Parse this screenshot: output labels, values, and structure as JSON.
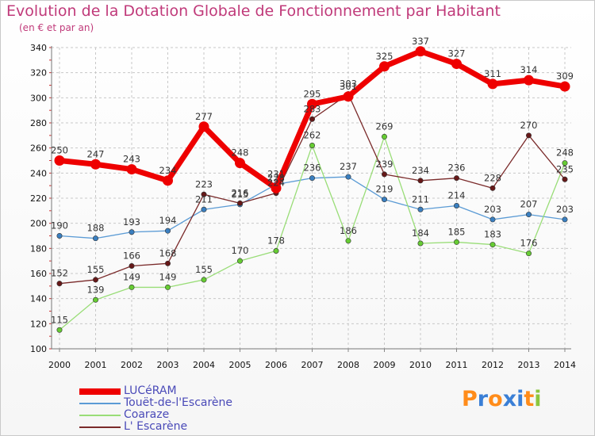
{
  "title": "Evolution de la Dotation Globale de Fonctionnement par Habitant",
  "subtitle": "(en € et par an)",
  "logo_text": "Proxiti",
  "colors": {
    "title": "#c03a7a",
    "grid": "#c8c8c8",
    "legend_text": "#4a4ab8",
    "logo_letters": [
      "#ff8c1a",
      "#3a7fd6",
      "#ff8c1a",
      "#3a7fd6",
      "#3a7fd6",
      "#ff8c1a",
      "#8cc63f"
    ]
  },
  "chart_data": {
    "type": "line",
    "title": "Evolution de la Dotation Globale de Fonctionnement par Habitant",
    "subtitle": "(en € et par an)",
    "x": [
      "2000",
      "2001",
      "2002",
      "2003",
      "2004",
      "2005",
      "2006",
      "2007",
      "2008",
      "2009",
      "2010",
      "2011",
      "2012",
      "2013",
      "2014"
    ],
    "ylim": [
      100,
      340
    ],
    "yticks": [
      100,
      120,
      140,
      160,
      180,
      200,
      220,
      240,
      260,
      280,
      300,
      320,
      340
    ],
    "grid": "horizontal dashed",
    "legend_position": "bottom-left",
    "series": [
      {
        "name": "LUCéRAM",
        "color": "#ee0000",
        "width": 7,
        "labels_shown": true,
        "values": [
          250,
          247,
          243,
          234,
          277,
          248,
          228,
          295,
          301,
          325,
          337,
          327,
          311,
          314,
          309
        ],
        "labels": [
          "250",
          "247",
          "243",
          "234",
          "277",
          "248",
          "228",
          "295",
          "301",
          "325",
          "337",
          "327",
          "311",
          "314",
          "309"
        ]
      },
      {
        "name": "Touët-de-l'Escarène",
        "color": "#5b9bd5",
        "marker_color": "#3a7fc0",
        "width": 1.3,
        "labels_shown": true,
        "values": [
          190,
          188,
          193,
          194,
          211,
          215,
          231,
          236,
          237,
          219,
          211,
          214,
          203,
          207,
          203
        ],
        "labels": [
          "190",
          "188",
          "193",
          "194",
          "211",
          "215",
          "231",
          "236",
          "237",
          "219",
          "211",
          "214",
          "203",
          "207",
          "203"
        ]
      },
      {
        "name": "Coaraze",
        "color": "#99dd77",
        "marker_color": "#66cc33",
        "width": 1.3,
        "labels_shown": true,
        "values": [
          115,
          139,
          149,
          149,
          155,
          170,
          178,
          262,
          186,
          269,
          184,
          185,
          183,
          176,
          248
        ],
        "labels": [
          "115",
          "139",
          "149",
          "149",
          "155",
          "170",
          "178",
          "262",
          "186",
          "269",
          "184",
          "185",
          "183",
          "176",
          "248"
        ]
      },
      {
        "name": "L' Escarène",
        "color": "#7a2a2a",
        "marker_color": "#661818",
        "width": 1.3,
        "labels_shown": true,
        "values": [
          152,
          155,
          166,
          168,
          223,
          216,
          224,
          283,
          303,
          239,
          234,
          236,
          228,
          270,
          235
        ],
        "labels": [
          "152",
          "155",
          "166",
          "168",
          "223",
          "216",
          "224",
          "283",
          "303",
          "239",
          "234",
          "236",
          "228",
          "270",
          "235"
        ]
      }
    ]
  }
}
